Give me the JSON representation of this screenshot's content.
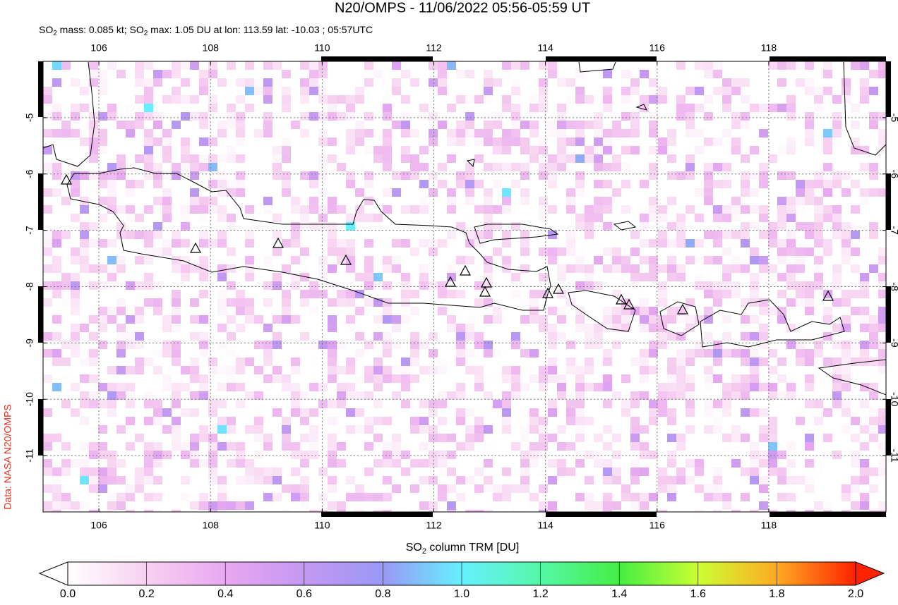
{
  "title": "N20/OMPS - 11/06/2022 05:56-05:59 UT",
  "subtitle": [
    "SO",
    "2",
    " mass: 0.085 kt; SO",
    "2",
    " max: 1.05 DU at lon: 113.59 lat: -10.03 ; 05:57UTC"
  ],
  "credit": "Data: NASA N20/OMPS",
  "map": {
    "xlim": [
      105,
      120.1
    ],
    "ylim": [
      -12,
      -4
    ],
    "xticks": [
      106,
      108,
      110,
      112,
      114,
      116,
      118
    ],
    "yticks": [
      -5,
      -6,
      -7,
      -8,
      -9,
      -10,
      -11
    ],
    "grid": true
  },
  "colorbar": {
    "label": [
      "SO",
      "2",
      " column TRM [DU]"
    ],
    "lim": [
      0,
      2
    ],
    "ticks": [
      {
        "value": 0,
        "label": "0.0"
      },
      0.2,
      0.4,
      0.6,
      0.8,
      {
        "value": 1,
        "label": "1.0"
      },
      1.2,
      1.4,
      1.6,
      1.8,
      {
        "value": 2,
        "label": "2.0"
      }
    ],
    "colors": [
      "#ffffff",
      "#f7d0f0",
      "#e8a8f0",
      "#c498f2",
      "#9a98f6",
      "#66f0ff",
      "#55f7a8",
      "#44ee44",
      "#ccff33",
      "#ffaa22",
      "#ff2200"
    ]
  }
}
